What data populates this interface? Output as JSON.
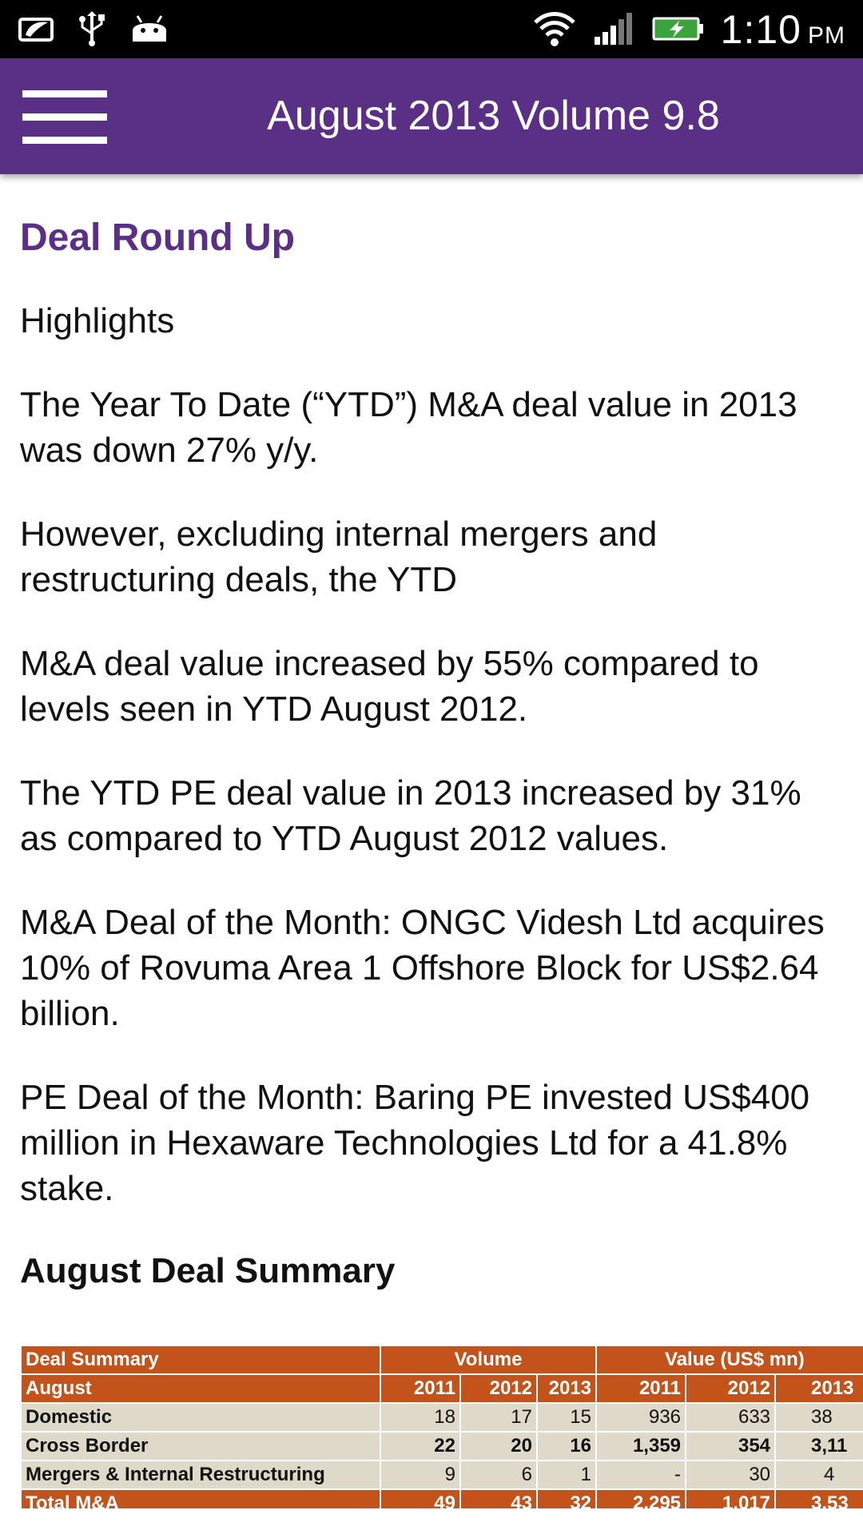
{
  "status_bar": {
    "time": "1:10",
    "ampm": "PM",
    "icons": [
      "notification-icon",
      "usb-icon",
      "android-icon",
      "wifi-icon",
      "signal-icon",
      "battery-charging-icon"
    ]
  },
  "app_bar": {
    "title": "August 2013 Volume 9.8",
    "menu_icon": "hamburger-menu-icon"
  },
  "article": {
    "section_title": "Deal Round Up",
    "paragraphs": [
      "Highlights",
      "The Year To Date (“YTD”) M&A deal value in 2013 was down 27% y/y.",
      "However, excluding internal mergers and restructuring deals, the YTD",
      "M&A deal value increased by 55% compared to levels seen in YTD August 2012.",
      "The YTD PE deal value in 2013 increased by 31% as compared to YTD August 2012 values.",
      "M&A Deal of the Month: ONGC Videsh Ltd acquires 10% of Rovuma Area 1 Offshore Block for US$2.64 billion.",
      "PE Deal of the Month: Baring PE invested US$400 million in Hexaware Technologies Ltd for a 41.8% stake."
    ],
    "summary_title": "August Deal Summary"
  },
  "deal_table": {
    "header1": [
      "Deal Summary",
      "Volume",
      "Value (US$ mn)"
    ],
    "header2": [
      "August",
      "2011",
      "2012",
      "2013",
      "2011",
      "2012",
      "2013"
    ],
    "rows": [
      [
        "Domestic",
        "18",
        "17",
        "15",
        "936",
        "633",
        "38"
      ],
      [
        "Cross Border",
        "22",
        "20",
        "16",
        "1,359",
        "354",
        "3,11"
      ],
      [
        "Mergers & Internal Restructuring",
        "9",
        "6",
        "1",
        "-",
        "30",
        "4"
      ],
      [
        "Total M&A",
        "49",
        "43",
        "32",
        "2,295",
        "1,017",
        "3,53"
      ]
    ]
  }
}
